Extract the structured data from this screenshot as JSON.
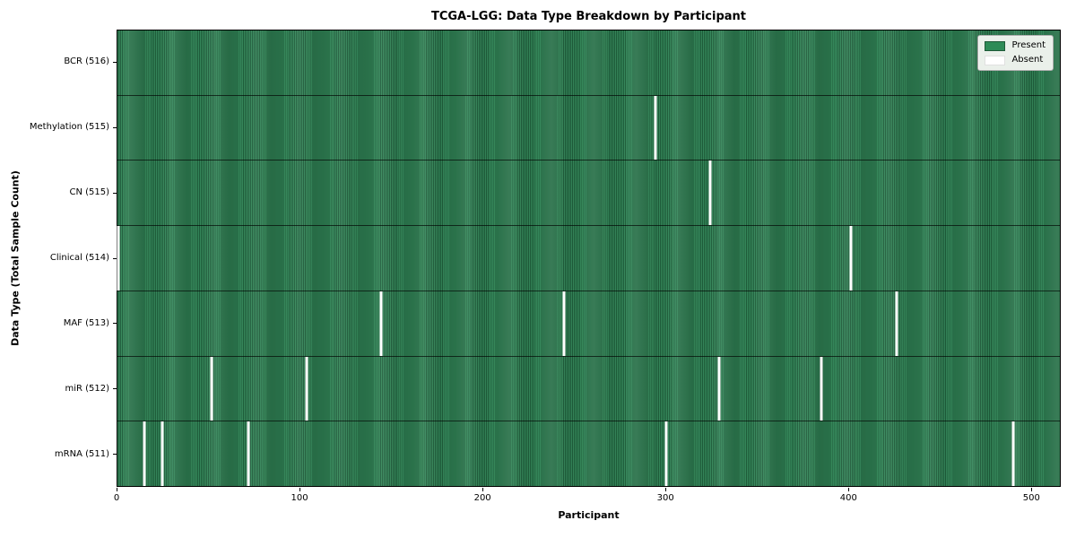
{
  "title": "TCGA-LGG: Data Type Breakdown by Participant",
  "legend": {
    "present_label": "Present",
    "absent_label": "Absent"
  },
  "chart_data": {
    "type": "heatmap",
    "title": "TCGA-LGG: Data Type Breakdown by Participant",
    "xlabel": "Participant",
    "ylabel": "Data Type (Total Sample Count)",
    "xlim": [
      0,
      516
    ],
    "n_participants": 516,
    "x_ticks": [
      0,
      100,
      200,
      300,
      400,
      500
    ],
    "grid": false,
    "legend_position": "upper right",
    "legend_entries": [
      {
        "label": "Present",
        "color": "#2e8b57"
      },
      {
        "label": "Absent",
        "color": "#ffffff"
      }
    ],
    "colors": {
      "present": "#2e8b57",
      "present_stripe_dark": "#1e5c3a",
      "absent": "#ffffff",
      "legend_background": "#eaf0ea"
    },
    "rows": [
      {
        "label": "BCR (516)",
        "data_type": "BCR",
        "present_count": 516,
        "absent_participants": []
      },
      {
        "label": "Methylation (515)",
        "data_type": "Methylation",
        "present_count": 515,
        "absent_participants": [
          294
        ]
      },
      {
        "label": "CN (515)",
        "data_type": "CN",
        "present_count": 515,
        "absent_participants": [
          324
        ]
      },
      {
        "label": "Clinical (514)",
        "data_type": "Clinical",
        "present_count": 514,
        "absent_participants": [
          0,
          401
        ]
      },
      {
        "label": "MAF (513)",
        "data_type": "MAF",
        "present_count": 513,
        "absent_participants": [
          144,
          244,
          426
        ]
      },
      {
        "label": "miR (512)",
        "data_type": "miR",
        "present_count": 512,
        "absent_participants": [
          51,
          103,
          329,
          385
        ]
      },
      {
        "label": "mRNA (511)",
        "data_type": "mRNA",
        "present_count": 511,
        "absent_participants": [
          14,
          24,
          71,
          300,
          490
        ]
      }
    ]
  }
}
